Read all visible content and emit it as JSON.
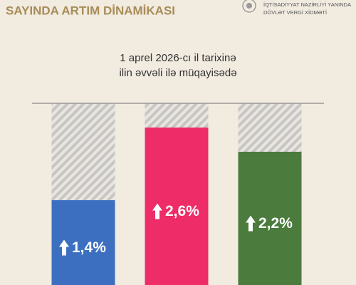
{
  "header": {
    "org_lines": [
      "İQTİSADİYYAT NAZİRLİYİ YANINDA",
      "DÖVLƏT VERGİ XİDMƏTİ"
    ]
  },
  "chart_data": {
    "type": "bar",
    "title": "SAYINDA ARTIM DİNAMİKASI",
    "subtitle": [
      "1 aprel 2026-cı il tarixinə",
      "ilin əvvəli ilə müqayisədə"
    ],
    "categories": [
      null,
      null,
      null
    ],
    "values": [
      1.4,
      2.6,
      2.2
    ],
    "value_labels": [
      "1,4%",
      "2,6%",
      "2,2%"
    ],
    "colors": [
      "#3d6fc0",
      "#ee2c68",
      "#4b7b3d"
    ],
    "ylim": [
      0,
      3
    ]
  }
}
